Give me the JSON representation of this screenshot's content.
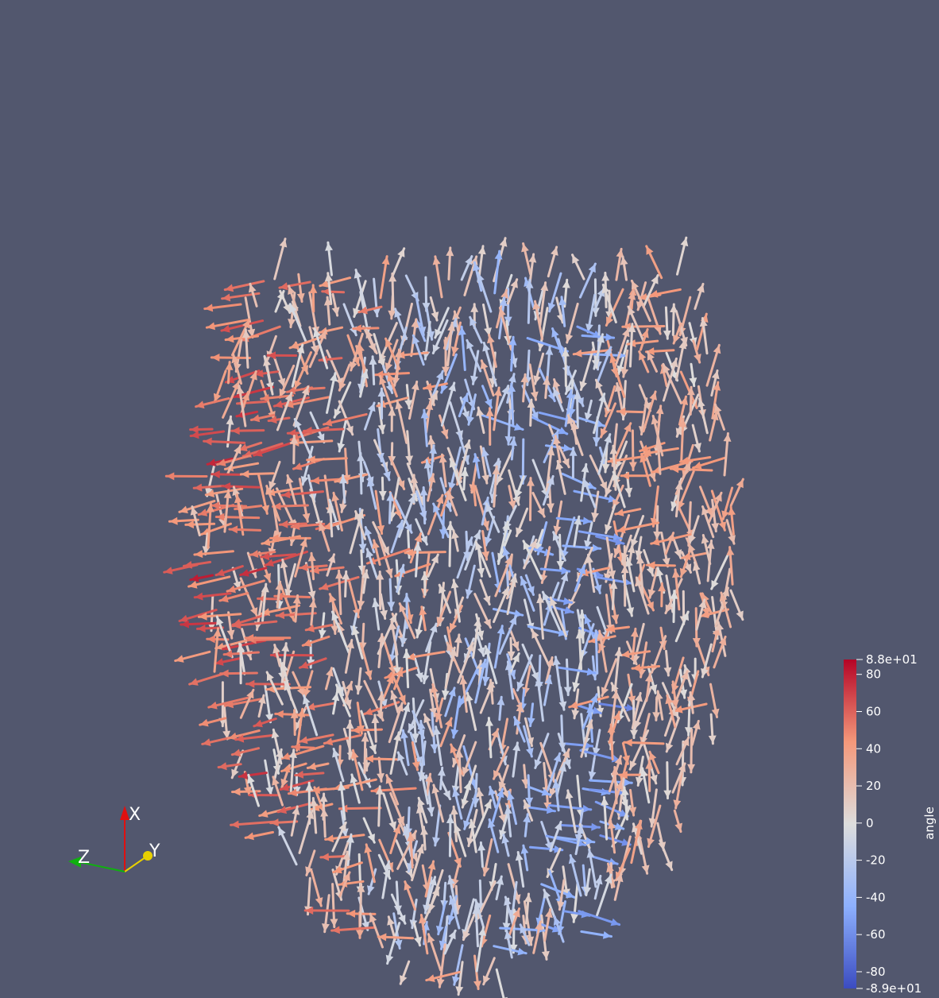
{
  "render": {
    "background_color": "#52576e",
    "colormap": "Cool to Warm",
    "colormap_low": "#3b4cc0",
    "colormap_mid": "#dddddd",
    "colormap_high": "#b40426",
    "glyph_type": "arrow"
  },
  "scalar_bar": {
    "title": "angle",
    "range_max_label": "8.8e+01",
    "range_min_label": "-8.9e+01",
    "range": [
      -89,
      88
    ],
    "ticks": [
      {
        "value": 80,
        "label": "80"
      },
      {
        "value": 60,
        "label": "60"
      },
      {
        "value": 40,
        "label": "40"
      },
      {
        "value": 20,
        "label": "20"
      },
      {
        "value": 0,
        "label": "0"
      },
      {
        "value": -20,
        "label": "-20"
      },
      {
        "value": -40,
        "label": "-40"
      },
      {
        "value": -60,
        "label": "-60"
      },
      {
        "value": -80,
        "label": "-80"
      }
    ]
  },
  "orientation_axes": {
    "x_label": "X",
    "y_label": "Y",
    "z_label": "Z",
    "x_color": "#e01010",
    "y_color": "#e8d000",
    "z_color": "#10b010"
  }
}
